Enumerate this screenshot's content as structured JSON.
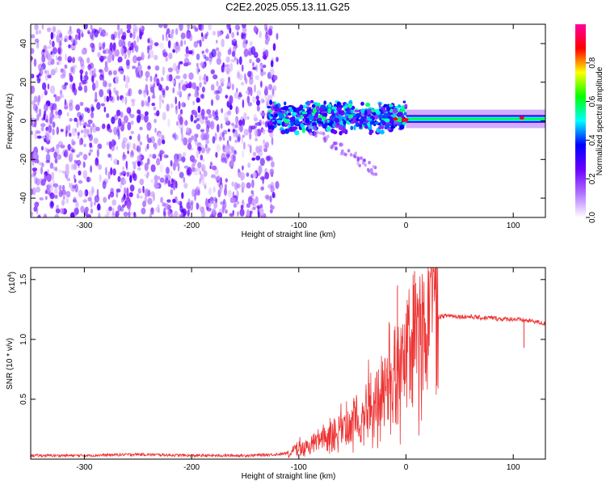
{
  "title": "C2E2.2025.055.13.11.G25",
  "chart_data": [
    {
      "type": "heatmap",
      "title": "C2E2.2025.055.13.11.G25",
      "xlabel": "Height of straight line (km)",
      "ylabel": "Frequency (Hz)",
      "xlim": [
        -350,
        130
      ],
      "ylim": [
        -50,
        50
      ],
      "x_ticks": [
        -300,
        -200,
        -100,
        0,
        100
      ],
      "x_tick_labels": [
        "-300",
        "-200",
        "-100",
        "0",
        "100"
      ],
      "y_ticks": [
        -40,
        -20,
        0,
        20,
        40
      ],
      "y_tick_labels": [
        "-40",
        "-20",
        "0",
        "20",
        "40"
      ],
      "colorbar": {
        "label": "Normalized spectral amplitude",
        "range": [
          0.0,
          1.0
        ],
        "ticks": [
          0.0,
          0.2,
          0.4,
          0.6,
          0.8
        ],
        "tick_labels": [
          "0.0",
          "0.2",
          "0.4",
          "0.6",
          "0.8"
        ],
        "colors": [
          "#ffffff",
          "#b070ff",
          "#6a00ff",
          "#0000ff",
          "#00ffff",
          "#00ff00",
          "#ffff00",
          "#ff0000",
          "#ff00a0"
        ]
      },
      "regions": [
        {
          "name": "noise",
          "x_range": [
            -350,
            -128
          ],
          "freq_range": [
            -50,
            50
          ],
          "amplitude": 0.15
        },
        {
          "name": "tracking-onset",
          "x_range": [
            -128,
            0
          ],
          "freq_center": 2,
          "freq_halfwidth": 6,
          "amplitude": 0.4
        },
        {
          "name": "tracked-signal",
          "x_range": [
            0,
            130
          ],
          "freq_center": 1,
          "freq_halfwidth": 2,
          "amplitude": 0.55
        }
      ]
    },
    {
      "type": "line",
      "xlabel": "Height of straight line (km)",
      "ylabel": "SNR (10 * v/v)",
      "scale_label": "(x10",
      "scale_exponent": "4",
      "xlim": [
        -350,
        130
      ],
      "ylim": [
        0,
        1.6
      ],
      "x_ticks": [
        -300,
        -200,
        -100,
        0,
        100
      ],
      "x_tick_labels": [
        "-300",
        "-200",
        "-100",
        "0",
        "100"
      ],
      "y_ticks": [
        0.5,
        1.0,
        1.5
      ],
      "y_tick_labels": [
        "0.5",
        "1.0",
        "1.5"
      ],
      "color": "#ee3333",
      "series": [
        {
          "name": "SNR",
          "x": [
            -350,
            -300,
            -250,
            -200,
            -150,
            -120,
            -110,
            -100,
            -90,
            -80,
            -70,
            -60,
            -50,
            -40,
            -30,
            -20,
            -10,
            0,
            5,
            10,
            15,
            20,
            25,
            30,
            40,
            50,
            60,
            70,
            80,
            90,
            100,
            110,
            120,
            130
          ],
          "values": [
            0.03,
            0.03,
            0.04,
            0.03,
            0.03,
            0.04,
            0.05,
            0.1,
            0.12,
            0.15,
            0.2,
            0.25,
            0.3,
            0.4,
            0.5,
            0.62,
            0.72,
            0.8,
            0.9,
            1.0,
            1.08,
            1.13,
            1.17,
            1.19,
            1.2,
            1.19,
            1.19,
            1.18,
            1.18,
            1.17,
            1.17,
            1.16,
            1.15,
            1.13
          ]
        }
      ],
      "spikes": [
        {
          "x": -8,
          "value": 1.45
        },
        {
          "x": 8,
          "value": 1.57
        },
        {
          "x": 12,
          "value": 0.32
        },
        {
          "x": 110,
          "value": 0.93
        }
      ]
    }
  ]
}
